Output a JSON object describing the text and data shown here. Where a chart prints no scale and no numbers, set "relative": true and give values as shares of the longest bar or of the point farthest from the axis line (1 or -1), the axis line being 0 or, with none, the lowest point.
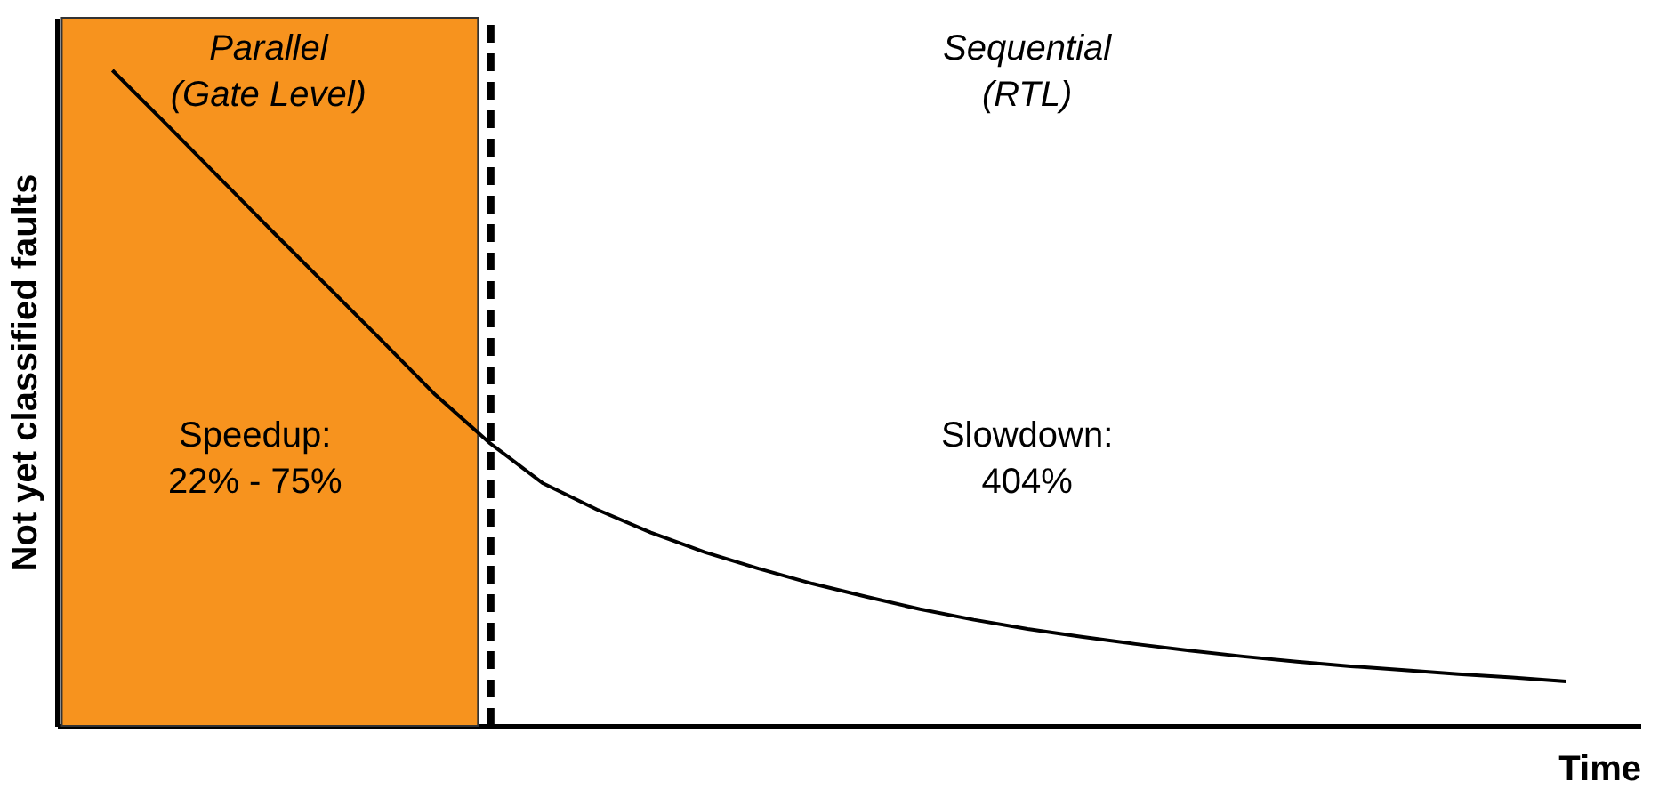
{
  "chart_data": {
    "type": "line",
    "relative": true,
    "xlabel": "Time",
    "ylabel": "Not yet classified faults",
    "categories": [
      null,
      null,
      null,
      null,
      null,
      null,
      null,
      null,
      null,
      null,
      null,
      null,
      null,
      null,
      null,
      null,
      null,
      null,
      null,
      null,
      null,
      null,
      null,
      null,
      null,
      null,
      null,
      null
    ],
    "series": [
      {
        "color": "#000000",
        "values": [
          1.0,
          0.918,
          0.835,
          0.752,
          0.67,
          0.588,
          0.505,
          0.432,
          0.37,
          0.33,
          0.295,
          0.265,
          0.24,
          0.217,
          0.197,
          0.178,
          0.162,
          0.148,
          0.136,
          0.125,
          0.115,
          0.106,
          0.098,
          0.091,
          0.085,
          0.079,
          0.074,
          0.068
        ]
      }
    ],
    "annotations": [
      "Parallel\n(Gate Level)",
      "Sequential\n(RTL)",
      "Speedup:\n22% - 75%",
      "Slowdown:\n404%"
    ]
  }
}
